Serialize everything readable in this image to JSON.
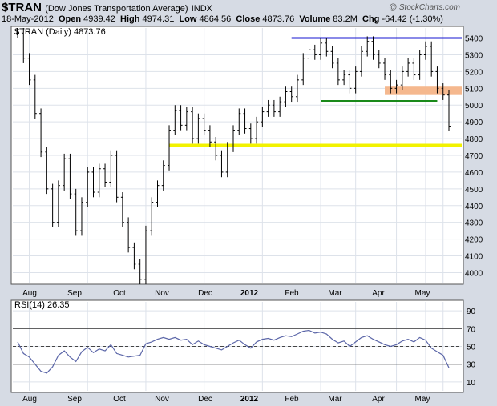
{
  "header": {
    "symbol": "$TRAN",
    "description": "(Dow Jones Transportation Average)",
    "exchange": "INDX",
    "date": "18-May-2012",
    "open_label": "Open",
    "open": "4939.42",
    "high_label": "High",
    "high": "4974.31",
    "low_label": "Low",
    "low": "4864.56",
    "close_label": "Close",
    "close": "4873.76",
    "volume_label": "Volume",
    "volume": "83.2M",
    "chg_label": "Chg",
    "chg": "-64.42 (-1.30%)",
    "watermark": "@ StockCharts.com"
  },
  "colors": {
    "background": "#d6dbe4",
    "panel": "#ffffff",
    "bars": "#000000",
    "rsi_line": "#5b66a8",
    "resistance": "#1515d0",
    "support": "#1a8a1a",
    "zone": "#f5b88e",
    "yellow": "#f2f200"
  },
  "chart_data": [
    {
      "type": "bar",
      "legend": "$TRAN (Daily) 4873.76",
      "y_ticks": [
        4000,
        4100,
        4200,
        4300,
        4400,
        4500,
        4600,
        4700,
        4800,
        4900,
        5000,
        5100,
        5200,
        5300,
        5400
      ],
      "ylim": [
        3940,
        5460
      ],
      "x_labels": [
        "Aug",
        "Sep",
        "Oct",
        "Nov",
        "Dec",
        "2012",
        "Feb",
        "Mar",
        "Apr",
        "May"
      ],
      "series_close": [
        5430,
        5280,
        5150,
        4950,
        4720,
        4500,
        4300,
        4520,
        4680,
        4470,
        4250,
        4420,
        4600,
        4480,
        4620,
        4540,
        4700,
        4450,
        4300,
        4150,
        4050,
        3960,
        4250,
        4420,
        4520,
        4640,
        4850,
        4970,
        4880,
        4960,
        4800,
        4920,
        4850,
        4780,
        4700,
        4600,
        4750,
        4850,
        4950,
        4860,
        4800,
        4900,
        4960,
        5000,
        4960,
        5020,
        5080,
        5050,
        5150,
        5280,
        5330,
        5300,
        5370,
        5320,
        5250,
        5150,
        5180,
        5100,
        5200,
        5320,
        5380,
        5300,
        5250,
        5180,
        5100,
        5120,
        5200,
        5250,
        5180,
        5300,
        5350,
        5200,
        5100,
        5060,
        4874
      ],
      "rsi": {
        "legend": "RSI(14) 26.35",
        "y_ticks": [
          10,
          30,
          50,
          70,
          90
        ],
        "levels": [
          30,
          50,
          70
        ],
        "values": [
          55,
          42,
          38,
          30,
          22,
          20,
          27,
          40,
          45,
          38,
          33,
          44,
          49,
          43,
          47,
          45,
          52,
          42,
          40,
          38,
          39,
          40,
          53,
          55,
          58,
          60,
          58,
          60,
          57,
          58,
          52,
          56,
          52,
          50,
          48,
          46,
          50,
          54,
          57,
          52,
          48,
          55,
          58,
          59,
          57,
          60,
          62,
          61,
          64,
          67,
          68,
          65,
          66,
          64,
          58,
          54,
          56,
          50,
          55,
          60,
          62,
          58,
          55,
          52,
          50,
          52,
          56,
          58,
          55,
          60,
          57,
          48,
          44,
          40,
          26
        ]
      },
      "annotations": [
        {
          "kind": "resistance-line",
          "value": 5400
        },
        {
          "kind": "support-line",
          "value": 5025
        },
        {
          "kind": "zone",
          "value_low": 5060,
          "value_high": 5110
        },
        {
          "kind": "support-line-yellow",
          "value": 4760
        }
      ]
    }
  ]
}
